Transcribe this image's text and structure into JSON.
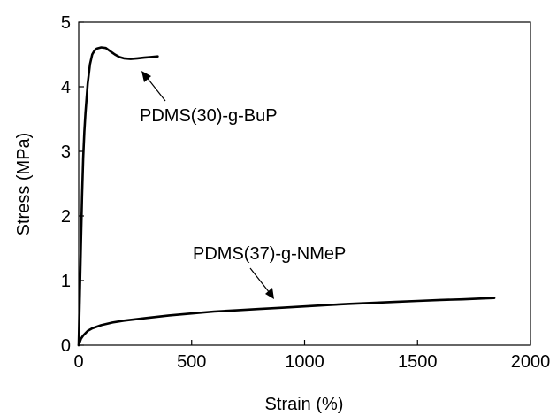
{
  "chart_data": {
    "type": "line",
    "xlabel": "Strain (%)",
    "ylabel": "Stress (MPa)",
    "xlim": [
      0,
      2000
    ],
    "ylim": [
      0,
      5
    ],
    "xticks": [
      0,
      500,
      1000,
      1500,
      2000
    ],
    "yticks": [
      0,
      1,
      2,
      3,
      4,
      5
    ],
    "xtick_labels": [
      "0",
      "500",
      "1000",
      "1500",
      "2000"
    ],
    "ytick_labels": [
      "0",
      "1",
      "2",
      "3",
      "4",
      "5"
    ],
    "grid": false,
    "legend": "none",
    "series": [
      {
        "x": [
          0,
          5,
          10,
          15,
          20,
          25,
          30,
          40,
          50,
          60,
          70,
          80,
          100,
          120,
          140,
          160,
          180,
          200,
          230,
          260,
          290,
          320,
          350
        ],
        "y": [
          0,
          0.8,
          1.6,
          2.3,
          2.9,
          3.3,
          3.6,
          4.05,
          4.35,
          4.5,
          4.56,
          4.59,
          4.61,
          4.6,
          4.55,
          4.5,
          4.46,
          4.44,
          4.43,
          4.44,
          4.45,
          4.46,
          4.47
        ]
      },
      {
        "x": [
          0,
          10,
          20,
          40,
          60,
          100,
          150,
          200,
          300,
          400,
          500,
          600,
          700,
          800,
          900,
          1000,
          1100,
          1200,
          1300,
          1400,
          1500,
          1600,
          1700,
          1800,
          1840
        ],
        "y": [
          0,
          0.1,
          0.15,
          0.22,
          0.26,
          0.31,
          0.35,
          0.38,
          0.42,
          0.46,
          0.49,
          0.52,
          0.54,
          0.56,
          0.58,
          0.6,
          0.62,
          0.64,
          0.655,
          0.67,
          0.685,
          0.7,
          0.71,
          0.725,
          0.73
        ]
      }
    ],
    "annotations": [
      {
        "text": "PDMS(30)-g-BuP",
        "arrow_to": [
          160,
          4.48
        ]
      },
      {
        "text": "PDMS(37)-g-NMeP",
        "arrow_to": [
          910,
          0.61
        ]
      }
    ]
  }
}
